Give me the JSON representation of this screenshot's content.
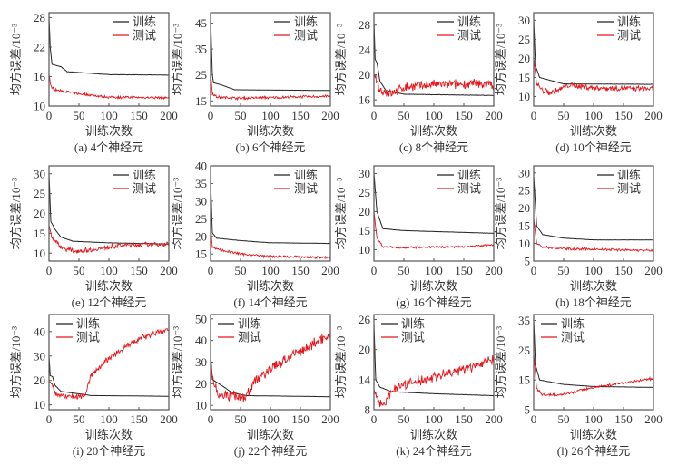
{
  "chart_data": {
    "type": "line",
    "shared": {
      "xlabel": "训练次数",
      "ylabel": "均方误差/10⁻³",
      "xlim": [
        0,
        200
      ],
      "xticks": [
        0,
        50,
        100,
        150,
        200
      ],
      "series_names": [
        "训练",
        "测试"
      ],
      "series_colors": [
        "#222222",
        "#e8141a"
      ]
    },
    "panels": [
      {
        "caption": "(a) 4个神经元",
        "ylim": [
          10,
          29
        ],
        "yticks": [
          10,
          16,
          22,
          28
        ],
        "legend": "top-right",
        "train": [
          [
            0,
            28
          ],
          [
            2,
            22
          ],
          [
            5,
            18.5
          ],
          [
            20,
            18
          ],
          [
            30,
            17
          ],
          [
            100,
            16.4
          ],
          [
            200,
            16.3
          ]
        ],
        "test": [
          [
            0,
            16.5
          ],
          [
            3,
            14
          ],
          [
            10,
            13.3
          ],
          [
            50,
            12.5
          ],
          [
            100,
            11.8
          ],
          [
            200,
            11.7
          ]
        ],
        "test_noise": 0.3
      },
      {
        "caption": "(b) 6个神经元",
        "ylim": [
          13,
          49
        ],
        "yticks": [
          15,
          25,
          35,
          45
        ],
        "legend": "top-right",
        "train": [
          [
            0,
            47
          ],
          [
            3,
            25
          ],
          [
            5,
            22
          ],
          [
            20,
            21
          ],
          [
            40,
            19.3
          ],
          [
            200,
            19
          ]
        ],
        "test": [
          [
            0,
            26
          ],
          [
            3,
            18
          ],
          [
            10,
            16.5
          ],
          [
            50,
            16
          ],
          [
            200,
            16.8
          ]
        ],
        "test_noise": 0.6
      },
      {
        "caption": "(c) 8个神经元",
        "ylim": [
          15,
          30
        ],
        "yticks": [
          16,
          20,
          24,
          28
        ],
        "legend": "top-right",
        "train": [
          [
            0,
            28.5
          ],
          [
            2,
            22.5
          ],
          [
            5,
            22
          ],
          [
            10,
            19
          ],
          [
            20,
            17.5
          ],
          [
            50,
            16.9
          ],
          [
            200,
            16.7
          ]
        ],
        "test": [
          [
            0,
            20
          ],
          [
            5,
            19
          ],
          [
            10,
            17.5
          ],
          [
            30,
            17
          ],
          [
            50,
            18
          ],
          [
            100,
            18.5
          ],
          [
            200,
            18.5
          ]
        ],
        "test_noise": 0.9
      },
      {
        "caption": "(d) 10个神经元",
        "ylim": [
          7.5,
          32
        ],
        "yticks": [
          10,
          15,
          20,
          25,
          30
        ],
        "legend": "top-right",
        "train": [
          [
            0,
            30
          ],
          [
            3,
            18
          ],
          [
            10,
            15
          ],
          [
            50,
            13.3
          ],
          [
            200,
            13.2
          ]
        ],
        "test": [
          [
            0,
            20
          ],
          [
            5,
            13.5
          ],
          [
            15,
            11.5
          ],
          [
            30,
            11
          ],
          [
            60,
            13
          ],
          [
            100,
            12.3
          ],
          [
            200,
            12
          ]
        ],
        "test_noise": 0.9
      },
      {
        "caption": "(e) 12个神经元",
        "ylim": [
          8,
          32
        ],
        "yticks": [
          10,
          15,
          20,
          25,
          30
        ],
        "legend": "top-right",
        "train": [
          [
            0,
            30
          ],
          [
            3,
            18
          ],
          [
            10,
            16
          ],
          [
            20,
            14
          ],
          [
            40,
            13
          ],
          [
            100,
            12.6
          ],
          [
            200,
            12.3
          ]
        ],
        "test": [
          [
            0,
            17
          ],
          [
            5,
            14
          ],
          [
            20,
            11.5
          ],
          [
            40,
            10.5
          ],
          [
            80,
            11
          ],
          [
            120,
            12
          ],
          [
            200,
            12.3
          ]
        ],
        "test_noise": 0.7
      },
      {
        "caption": "(f) 14个神经元",
        "ylim": [
          13,
          40
        ],
        "yticks": [
          15,
          20,
          25,
          30,
          35,
          40
        ],
        "legend": "top-right",
        "train": [
          [
            0,
            36
          ],
          [
            3,
            21
          ],
          [
            10,
            19.5
          ],
          [
            50,
            18.8
          ],
          [
            100,
            18.2
          ],
          [
            200,
            18
          ]
        ],
        "test": [
          [
            0,
            23
          ],
          [
            3,
            17
          ],
          [
            20,
            16
          ],
          [
            50,
            15
          ],
          [
            100,
            14.3
          ],
          [
            200,
            14
          ]
        ],
        "test_noise": 0.4
      },
      {
        "caption": "(g) 16个神经元",
        "ylim": [
          7,
          32
        ],
        "yticks": [
          10,
          15,
          20,
          25,
          30
        ],
        "legend": "top-right",
        "train": [
          [
            0,
            30
          ],
          [
            5,
            20
          ],
          [
            15,
            15.5
          ],
          [
            50,
            15
          ],
          [
            200,
            14.3
          ]
        ],
        "test": [
          [
            0,
            20
          ],
          [
            5,
            13
          ],
          [
            15,
            10.8
          ],
          [
            50,
            10.5
          ],
          [
            150,
            10.8
          ],
          [
            200,
            11.2
          ]
        ],
        "test_noise": 0.3
      },
      {
        "caption": "(h) 18个神经元",
        "ylim": [
          5,
          32
        ],
        "yticks": [
          5,
          10,
          15,
          20,
          25,
          30
        ],
        "legend": "top-right",
        "train": [
          [
            0,
            29
          ],
          [
            5,
            15
          ],
          [
            15,
            12.5
          ],
          [
            50,
            11.5
          ],
          [
            100,
            11
          ],
          [
            200,
            11
          ]
        ],
        "test": [
          [
            0,
            17
          ],
          [
            5,
            10
          ],
          [
            15,
            9
          ],
          [
            50,
            8.5
          ],
          [
            200,
            8
          ]
        ],
        "test_noise": 0.4
      },
      {
        "caption": "(i) 20个神经元",
        "ylim": [
          8,
          47
        ],
        "yticks": [
          10,
          20,
          30,
          40
        ],
        "legend": "top-left",
        "train": [
          [
            0,
            30
          ],
          [
            2,
            22
          ],
          [
            6,
            21.5
          ],
          [
            10,
            18
          ],
          [
            20,
            15.5
          ],
          [
            50,
            14.5
          ],
          [
            70,
            13.8
          ],
          [
            200,
            13.5
          ]
        ],
        "test": [
          [
            0,
            19.5
          ],
          [
            5,
            19
          ],
          [
            10,
            15
          ],
          [
            20,
            13.5
          ],
          [
            50,
            13.5
          ],
          [
            60,
            14
          ],
          [
            70,
            22
          ],
          [
            100,
            29
          ],
          [
            150,
            37
          ],
          [
            200,
            41
          ]
        ],
        "test_noise": 1.5
      },
      {
        "caption": "(j) 22个神经元",
        "ylim": [
          8,
          52
        ],
        "yticks": [
          10,
          20,
          30,
          40,
          50
        ],
        "legend": "top-left",
        "train": [
          [
            0,
            34
          ],
          [
            3,
            22
          ],
          [
            25,
            18
          ],
          [
            35,
            16
          ],
          [
            60,
            14.5
          ],
          [
            200,
            14
          ]
        ],
        "test": [
          [
            0,
            30
          ],
          [
            5,
            20
          ],
          [
            15,
            15
          ],
          [
            40,
            14.5
          ],
          [
            60,
            14
          ],
          [
            70,
            20
          ],
          [
            100,
            27
          ],
          [
            150,
            35
          ],
          [
            200,
            43
          ]
        ],
        "test_noise": 3
      },
      {
        "caption": "(k) 24个神经元",
        "ylim": [
          8,
          27
        ],
        "yticks": [
          8,
          14,
          20,
          26
        ],
        "legend": "top-left",
        "train": [
          [
            0,
            25
          ],
          [
            3,
            14
          ],
          [
            10,
            12.5
          ],
          [
            30,
            11.6
          ],
          [
            100,
            11.2
          ],
          [
            200,
            10.8
          ]
        ],
        "test": [
          [
            0,
            12
          ],
          [
            5,
            10
          ],
          [
            15,
            9.3
          ],
          [
            20,
            9.5
          ],
          [
            30,
            12
          ],
          [
            50,
            13
          ],
          [
            100,
            14.5
          ],
          [
            150,
            16
          ],
          [
            200,
            18
          ]
        ],
        "test_noise": 1.2
      },
      {
        "caption": "(l) 26个神经元",
        "ylim": [
          5,
          37
        ],
        "yticks": [
          5,
          15,
          25,
          35
        ],
        "legend": "top-left",
        "train": [
          [
            0,
            35
          ],
          [
            3,
            20
          ],
          [
            10,
            15
          ],
          [
            50,
            13.5
          ],
          [
            100,
            12.8
          ],
          [
            200,
            12.5
          ]
        ],
        "test": [
          [
            0,
            24
          ],
          [
            5,
            12
          ],
          [
            15,
            10
          ],
          [
            50,
            10.2
          ],
          [
            100,
            12.5
          ],
          [
            150,
            14
          ],
          [
            200,
            15.5
          ]
        ],
        "test_noise": 0.5
      }
    ]
  }
}
